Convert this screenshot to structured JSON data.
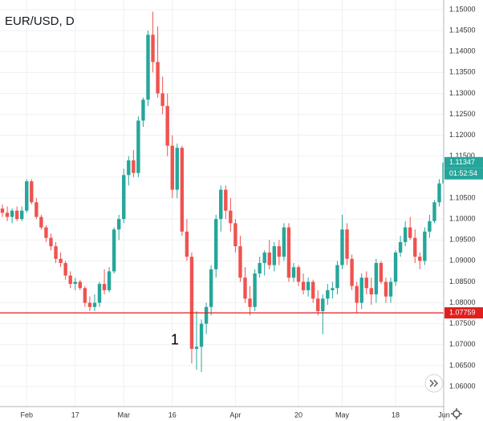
{
  "chart_data": {
    "type": "candlestick",
    "title": "EUR/USD, D",
    "categories": [
      null,
      null,
      null,
      null,
      null,
      "Feb",
      null,
      null,
      null,
      null,
      null,
      null,
      null,
      null,
      null,
      "17",
      null,
      null,
      null,
      null,
      null,
      null,
      null,
      null,
      null,
      "Mar",
      null,
      null,
      null,
      null,
      null,
      null,
      null,
      null,
      null,
      "16",
      null,
      null,
      null,
      null,
      null,
      null,
      null,
      null,
      null,
      null,
      null,
      null,
      "Apr",
      null,
      null,
      null,
      null,
      null,
      null,
      null,
      null,
      null,
      null,
      null,
      null,
      "20",
      null,
      null,
      null,
      null,
      null,
      null,
      null,
      null,
      "May",
      null,
      null,
      null,
      null,
      null,
      null,
      null,
      null,
      null,
      null,
      "18",
      null,
      null,
      null,
      null,
      null,
      null,
      null,
      null,
      null,
      "Jun"
    ],
    "open": [
      1.1025,
      1.1015,
      1.1005,
      1.102,
      1.1,
      1.102,
      1.109,
      1.104,
      1.1005,
      1.098,
      1.0955,
      1.0935,
      1.0905,
      1.0895,
      1.0865,
      1.0845,
      1.085,
      1.0835,
      1.08,
      1.079,
      1.08,
      1.0845,
      1.083,
      1.0875,
      1.0975,
      1.1,
      1.1105,
      1.114,
      1.111,
      1.1235,
      1.1285,
      1.144,
      1.1375,
      1.13,
      1.127,
      1.1175,
      1.107,
      1.117,
      1.097,
      1.091,
      1.069,
      1.0695,
      1.075,
      1.079,
      1.088,
      1.1,
      1.107,
      1.102,
      1.099,
      1.0935,
      1.086,
      1.081,
      1.079,
      1.087,
      1.0895,
      1.092,
      1.089,
      1.0935,
      1.091,
      1.098,
      1.086,
      1.0885,
      1.085,
      1.083,
      1.085,
      1.081,
      1.078,
      1.081,
      1.083,
      1.0835,
      1.089,
      1.0975,
      1.0905,
      1.084,
      1.08,
      1.086,
      1.0835,
      1.082,
      1.0895,
      1.085,
      1.0815,
      1.085,
      1.092,
      1.0945,
      1.098,
      1.0955,
      1.091,
      1.09,
      1.097,
      1.0995,
      1.104,
      1.1085
    ],
    "high": [
      1.1035,
      1.103,
      1.1025,
      1.103,
      1.103,
      1.1095,
      1.1095,
      1.105,
      1.101,
      1.0985,
      1.0965,
      1.0945,
      1.092,
      1.09,
      1.0875,
      1.086,
      1.0855,
      1.084,
      1.0815,
      1.082,
      1.085,
      1.088,
      1.0885,
      1.098,
      1.101,
      1.112,
      1.115,
      1.1165,
      1.1245,
      1.129,
      1.145,
      1.1495,
      1.146,
      1.134,
      1.13,
      1.12,
      1.118,
      1.1175,
      1.1,
      1.092,
      1.078,
      1.076,
      1.08,
      1.089,
      1.101,
      1.108,
      1.108,
      1.105,
      1.1,
      1.096,
      1.0885,
      1.084,
      1.088,
      1.091,
      1.0925,
      1.095,
      1.0945,
      1.095,
      1.099,
      1.099,
      1.0895,
      1.089,
      1.087,
      1.086,
      1.0855,
      1.083,
      1.082,
      1.0845,
      1.085,
      1.09,
      1.101,
      1.099,
      1.0915,
      1.085,
      1.087,
      1.0875,
      1.086,
      1.0905,
      1.09,
      1.086,
      1.086,
      1.0925,
      1.096,
      1.0995,
      1.1005,
      1.0975,
      1.092,
      1.098,
      1.101,
      1.1045,
      1.1095,
      1.115
    ],
    "low": [
      1.1005,
      1.0995,
      1.099,
      1.0995,
      1.0995,
      1.1015,
      1.1035,
      1.1,
      1.0975,
      1.0945,
      1.0925,
      1.0895,
      1.0885,
      1.0855,
      1.0835,
      1.083,
      1.083,
      1.079,
      1.078,
      1.078,
      1.079,
      1.082,
      1.0825,
      1.087,
      1.095,
      1.099,
      1.108,
      1.11,
      1.11,
      1.122,
      1.127,
      1.135,
      1.129,
      1.125,
      1.115,
      1.105,
      1.105,
      1.096,
      1.09,
      1.0655,
      1.064,
      1.0635,
      1.0725,
      1.077,
      1.086,
      1.097,
      1.1,
      1.097,
      1.092,
      1.085,
      1.08,
      1.077,
      1.078,
      1.086,
      1.0865,
      1.088,
      1.0875,
      1.089,
      1.09,
      1.085,
      1.085,
      1.084,
      1.082,
      1.0815,
      1.08,
      1.077,
      1.0725,
      1.0795,
      1.081,
      1.082,
      1.088,
      1.089,
      1.083,
      1.0775,
      1.0785,
      1.082,
      1.0795,
      1.08,
      1.0845,
      1.08,
      1.08,
      1.084,
      1.091,
      1.0935,
      1.095,
      1.0895,
      1.088,
      1.089,
      1.0955,
      1.099,
      1.103,
      1.108
    ],
    "close": [
      1.1015,
      1.1005,
      1.102,
      1.1,
      1.102,
      1.109,
      1.104,
      1.1005,
      1.098,
      1.0955,
      1.0935,
      1.0905,
      1.0895,
      1.0865,
      1.0845,
      1.085,
      1.0835,
      1.08,
      1.079,
      1.08,
      1.0845,
      1.083,
      1.0875,
      1.0975,
      1.1,
      1.1105,
      1.114,
      1.111,
      1.1235,
      1.1285,
      1.144,
      1.1375,
      1.13,
      1.127,
      1.1175,
      1.107,
      1.117,
      1.097,
      1.091,
      1.069,
      1.0695,
      1.075,
      1.079,
      1.088,
      1.1,
      1.107,
      1.102,
      1.099,
      1.0935,
      1.086,
      1.081,
      1.079,
      1.087,
      1.0895,
      1.092,
      1.089,
      1.0935,
      1.091,
      1.098,
      1.086,
      1.0885,
      1.085,
      1.083,
      1.085,
      1.081,
      1.078,
      1.081,
      1.083,
      1.0835,
      1.089,
      1.0975,
      1.0905,
      1.084,
      1.08,
      1.086,
      1.0835,
      1.082,
      1.0895,
      1.085,
      1.0815,
      1.085,
      1.092,
      1.0945,
      1.098,
      1.0955,
      1.091,
      1.09,
      1.097,
      1.0995,
      1.104,
      1.1085,
      1.11347
    ],
    "up_color": "#26a69a",
    "down_color": "#ef5350",
    "countdown": "01:52:54",
    "hline": 1.07759,
    "hline_color": "#e01e1e",
    "annotation": {
      "text": "1",
      "index": 37,
      "value": 1.071
    },
    "ylim": [
      1.0556,
      1.1523
    ],
    "yticks": [
      {
        "value": 1.15,
        "label": "1.15000"
      },
      {
        "value": 1.145,
        "label": "1.14500"
      },
      {
        "value": 1.14,
        "label": "1.14000"
      },
      {
        "value": 1.135,
        "label": "1.13500"
      },
      {
        "value": 1.13,
        "label": "1.13000"
      },
      {
        "value": 1.125,
        "label": "1.12500"
      },
      {
        "value": 1.12,
        "label": "1.12000"
      },
      {
        "value": 1.115,
        "label": "1.11500"
      },
      {
        "value": 1.11,
        "label": "1.11000"
      },
      {
        "value": 1.105,
        "label": "1.10500"
      },
      {
        "value": 1.1,
        "label": "1.10000"
      },
      {
        "value": 1.095,
        "label": "1.09500"
      },
      {
        "value": 1.09,
        "label": "1.09000"
      },
      {
        "value": 1.085,
        "label": "1.08500"
      },
      {
        "value": 1.08,
        "label": "1.08000"
      },
      {
        "value": 1.075,
        "label": "1.07500"
      },
      {
        "value": 1.07,
        "label": "1.07000"
      },
      {
        "value": 1.065,
        "label": "1.06500"
      },
      {
        "value": 1.06,
        "label": "1.06000"
      }
    ],
    "grid": true
  }
}
